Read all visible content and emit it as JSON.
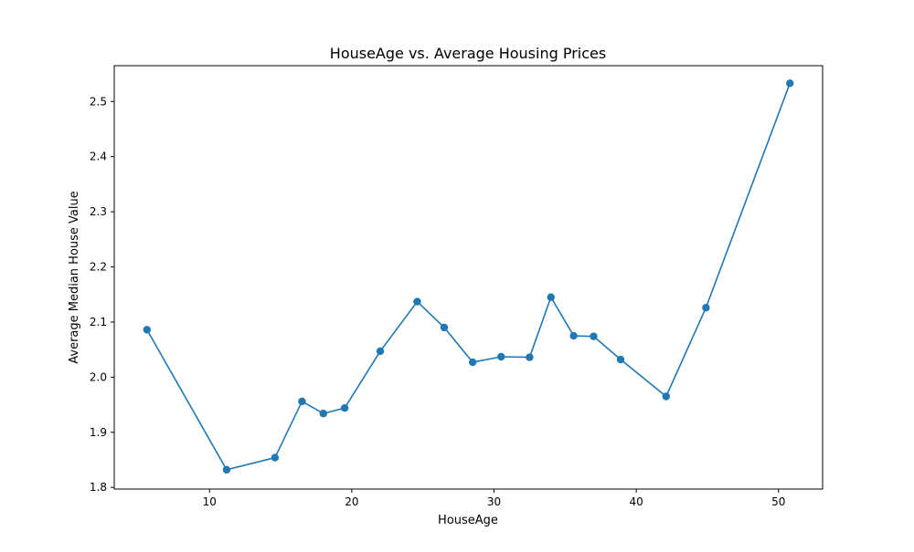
{
  "chart_data": {
    "type": "line",
    "title": "HouseAge vs. Average Housing Prices",
    "xlabel": "HouseAge",
    "ylabel": "Average Median House Value",
    "xlim": [
      3.3,
      53.1
    ],
    "ylim": [
      1.797,
      2.565
    ],
    "xticks": [
      10,
      20,
      30,
      40,
      50
    ],
    "yticks": [
      1.8,
      1.9,
      2.0,
      2.1,
      2.2,
      2.3,
      2.4,
      2.5
    ],
    "grid": false,
    "line_color": "#1f77b4",
    "series": [
      {
        "x": [
          5.6,
          11.2,
          14.6,
          16.5,
          18.0,
          19.5,
          22.0,
          24.6,
          26.5,
          28.5,
          30.5,
          32.5,
          34.0,
          35.6,
          37.0,
          38.9,
          42.1,
          44.9,
          50.8
        ],
        "y": [
          2.086,
          1.832,
          1.854,
          1.956,
          1.934,
          1.944,
          2.047,
          2.137,
          2.09,
          2.027,
          2.037,
          2.036,
          2.145,
          2.075,
          2.074,
          2.032,
          1.965,
          2.126,
          2.533
        ]
      }
    ]
  }
}
